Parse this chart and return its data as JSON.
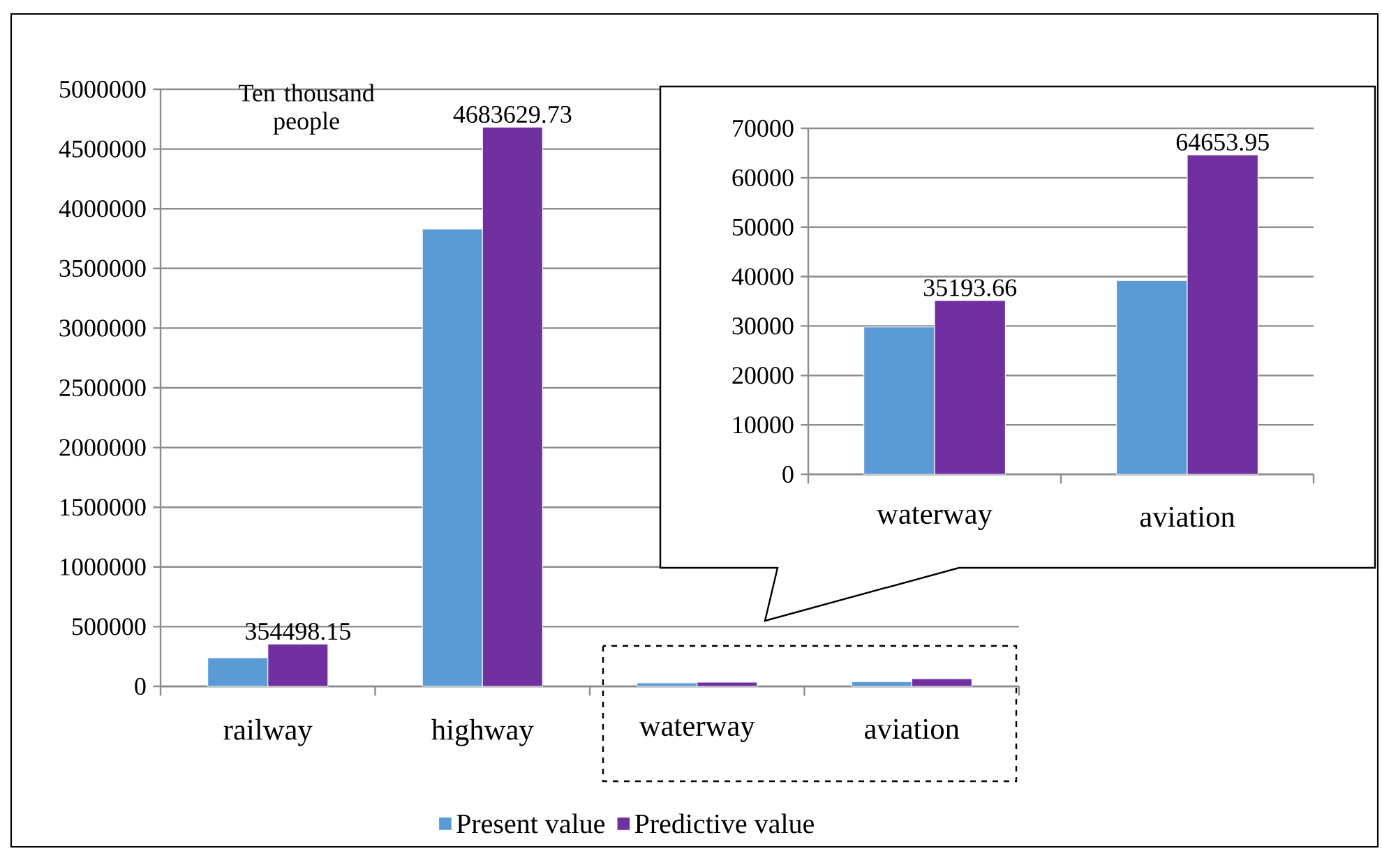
{
  "chart_data": [
    {
      "type": "bar",
      "ylabel": "Ten thousand people",
      "categories": [
        "railway",
        "highway",
        "waterway",
        "aviation"
      ],
      "series": [
        {
          "name": "Present value",
          "color": "#5b9bd5",
          "values": [
            240000,
            3830000,
            29800,
            39200
          ]
        },
        {
          "name": "Predictive value",
          "color": "#7030a0",
          "values": [
            354498.15,
            4683629.73,
            35193.66,
            64653.95
          ],
          "value_labels": [
            "354498.15",
            "4683629.73",
            null,
            null
          ]
        }
      ],
      "ylim": [
        0,
        5000000
      ],
      "yticks": [
        0,
        500000,
        1000000,
        1500000,
        2000000,
        2500000,
        3000000,
        3500000,
        4000000,
        4500000,
        5000000
      ],
      "grid": "y",
      "legend": "bottom"
    },
    {
      "type": "bar",
      "categories": [
        "waterway",
        "aviation"
      ],
      "series": [
        {
          "color": "#5b9bd5",
          "values": [
            29800,
            39200
          ]
        },
        {
          "color": "#7030a0",
          "values": [
            35193.66,
            64653.95
          ],
          "value_labels": [
            "35193.66",
            "64653.95"
          ]
        }
      ],
      "ylim": [
        0,
        70000
      ],
      "yticks": [
        0,
        10000,
        20000,
        30000,
        40000,
        50000,
        60000,
        70000
      ],
      "grid": "y"
    }
  ]
}
